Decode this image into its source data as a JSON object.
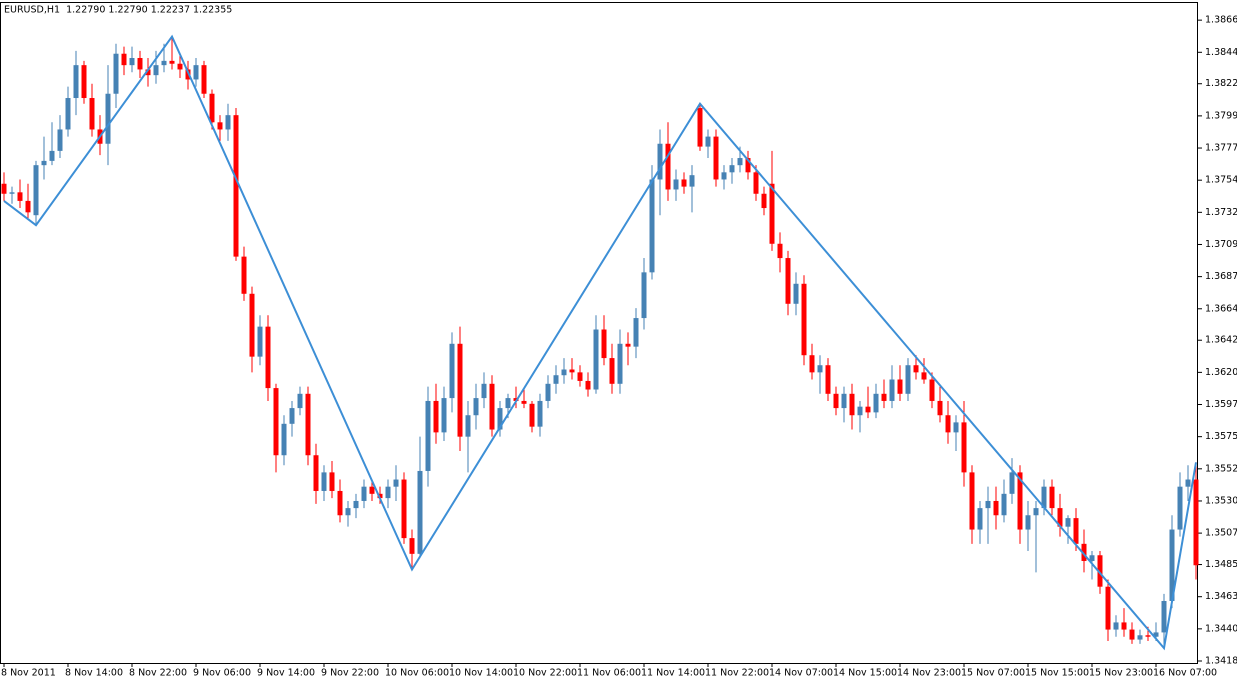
{
  "chart_data": {
    "type": "candlestick",
    "title": "EURUSD,H1  1.22790 1.22790 1.22237 1.22355",
    "up_color": "#4682b4",
    "down_color": "#ff0000",
    "ylim": [
      1.34166,
      1.38785
    ],
    "yticks": [
      1.38665,
      {
        "value": 1.3844,
        "label": "1.38440"
      },
      {
        "value": 1.3822,
        "label": "1.38220"
      },
      1.37995,
      {
        "value": 1.3777,
        "label": "1.37770"
      },
      1.37545,
      {
        "value": 1.3732,
        "label": "1.37320"
      },
      1.37095,
      {
        "value": 1.3687,
        "label": "1.36870"
      },
      1.36645,
      1.36425,
      {
        "value": 1.362,
        "label": "1.36200"
      },
      1.35975,
      {
        "value": 1.3575,
        "label": "1.35750"
      },
      1.35525,
      {
        "value": 1.353,
        "label": "1.35300"
      },
      1.35075,
      1.34855,
      {
        "value": 1.3463,
        "label": "1.34630"
      },
      1.34405,
      {
        "value": 1.3418,
        "label": "1.34180"
      }
    ],
    "categories": [
      "8 Nov 2011",
      null,
      null,
      null,
      null,
      null,
      null,
      null,
      "8 Nov 14:00",
      null,
      null,
      null,
      null,
      null,
      null,
      null,
      "8 Nov 22:00",
      null,
      null,
      null,
      null,
      null,
      null,
      null,
      "9 Nov 06:00",
      null,
      null,
      null,
      null,
      null,
      null,
      null,
      "9 Nov 14:00",
      null,
      null,
      null,
      null,
      null,
      null,
      null,
      "9 Nov 22:00",
      null,
      null,
      null,
      null,
      null,
      null,
      null,
      "10 Nov 06:00",
      null,
      null,
      null,
      null,
      null,
      null,
      null,
      "10 Nov 14:00",
      null,
      null,
      null,
      null,
      null,
      null,
      null,
      "10 Nov 22:00",
      null,
      null,
      null,
      null,
      null,
      null,
      null,
      "11 Nov 06:00",
      null,
      null,
      null,
      null,
      null,
      null,
      null,
      "11 Nov 14:00",
      null,
      null,
      null,
      null,
      null,
      null,
      null,
      "11 Nov 22:00",
      null,
      null,
      null,
      null,
      null,
      null,
      null,
      "14 Nov 07:00",
      null,
      null,
      null,
      null,
      null,
      null,
      null,
      "14 Nov 15:00",
      null,
      null,
      null,
      null,
      null,
      null,
      null,
      "14 Nov 23:00",
      null,
      null,
      null,
      null,
      null,
      null,
      null,
      "15 Nov 07:00",
      null,
      null,
      null,
      null,
      null,
      null,
      null,
      "15 Nov 15:00",
      null,
      null,
      null,
      null,
      null,
      null,
      null,
      "15 Nov 23:00",
      null,
      null,
      null,
      null,
      null,
      null,
      null,
      "16 Nov 07:00",
      null,
      null,
      null,
      null,
      null
    ],
    "candles": [
      [
        1.3752,
        1.376,
        1.374,
        1.3745
      ],
      [
        1.3745,
        1.375,
        1.3738,
        1.3746
      ],
      [
        1.3746,
        1.3755,
        1.3735,
        1.374
      ],
      [
        1.374,
        1.3752,
        1.3728,
        1.3732
      ],
      [
        1.373,
        1.3768,
        1.3723,
        1.3765
      ],
      [
        1.3765,
        1.3785,
        1.3755,
        1.3768
      ],
      [
        1.3768,
        1.3795,
        1.3765,
        1.3775
      ],
      [
        1.3775,
        1.38,
        1.377,
        1.379
      ],
      [
        1.379,
        1.382,
        1.3785,
        1.3812
      ],
      [
        1.3812,
        1.3845,
        1.38,
        1.3835
      ],
      [
        1.3835,
        1.3838,
        1.3808,
        1.3812
      ],
      [
        1.3812,
        1.3822,
        1.3785,
        1.379
      ],
      [
        1.379,
        1.38,
        1.3772,
        1.378
      ],
      [
        1.378,
        1.3835,
        1.3765,
        1.3815
      ],
      [
        1.3815,
        1.385,
        1.3805,
        1.3843
      ],
      [
        1.3843,
        1.3848,
        1.3828,
        1.3835
      ],
      [
        1.3835,
        1.3848,
        1.383,
        1.384
      ],
      [
        1.384,
        1.3845,
        1.3826,
        1.3832
      ],
      [
        1.3832,
        1.384,
        1.382,
        1.3828
      ],
      [
        1.3828,
        1.3845,
        1.3822,
        1.3835
      ],
      [
        1.3835,
        1.385,
        1.383,
        1.3838
      ],
      [
        1.3838,
        1.3855,
        1.3832,
        1.3836
      ],
      [
        1.3836,
        1.3842,
        1.3826,
        1.3832
      ],
      [
        1.3832,
        1.3838,
        1.3818,
        1.3825
      ],
      [
        1.3825,
        1.384,
        1.382,
        1.3835
      ],
      [
        1.3835,
        1.3838,
        1.3812,
        1.3815
      ],
      [
        1.3815,
        1.3818,
        1.379,
        1.3795
      ],
      [
        1.3795,
        1.38,
        1.3782,
        1.379
      ],
      [
        1.379,
        1.3808,
        1.3782,
        1.38
      ],
      [
        1.38,
        1.3805,
        1.3698,
        1.3701
      ],
      [
        1.3701,
        1.3708,
        1.367,
        1.3675
      ],
      [
        1.3675,
        1.368,
        1.362,
        1.3631
      ],
      [
        1.3631,
        1.366,
        1.3625,
        1.3652
      ],
      [
        1.3652,
        1.366,
        1.36,
        1.3609
      ],
      [
        1.3609,
        1.3612,
        1.355,
        1.3562
      ],
      [
        1.3562,
        1.359,
        1.3555,
        1.3584
      ],
      [
        1.3584,
        1.36,
        1.3575,
        1.3595
      ],
      [
        1.3595,
        1.361,
        1.359,
        1.3605
      ],
      [
        1.3605,
        1.361,
        1.3555,
        1.3562
      ],
      [
        1.3562,
        1.357,
        1.3528,
        1.3537
      ],
      [
        1.3537,
        1.3555,
        1.353,
        1.355
      ],
      [
        1.355,
        1.3558,
        1.3532,
        1.3537
      ],
      [
        1.3537,
        1.3545,
        1.3515,
        1.352
      ],
      [
        1.352,
        1.353,
        1.3512,
        1.3525
      ],
      [
        1.3525,
        1.3535,
        1.3518,
        1.353
      ],
      [
        1.353,
        1.3545,
        1.3525,
        1.354
      ],
      [
        1.354,
        1.3545,
        1.353,
        1.3535
      ],
      [
        1.3535,
        1.354,
        1.3528,
        1.3532
      ],
      [
        1.3532,
        1.3545,
        1.3525,
        1.354
      ],
      [
        1.354,
        1.3555,
        1.353,
        1.3545
      ],
      [
        1.3545,
        1.355,
        1.35,
        1.3504
      ],
      [
        1.3504,
        1.351,
        1.3482,
        1.3493
      ],
      [
        1.3493,
        1.3575,
        1.349,
        1.3551
      ],
      [
        1.3551,
        1.361,
        1.354,
        1.36
      ],
      [
        1.36,
        1.3612,
        1.357,
        1.3578
      ],
      [
        1.3578,
        1.361,
        1.3572,
        1.3602
      ],
      [
        1.3602,
        1.3648,
        1.3592,
        1.364
      ],
      [
        1.364,
        1.3652,
        1.3565,
        1.3575
      ],
      [
        1.3575,
        1.36,
        1.355,
        1.359
      ],
      [
        1.359,
        1.3612,
        1.358,
        1.3602
      ],
      [
        1.3602,
        1.362,
        1.3595,
        1.3612
      ],
      [
        1.3612,
        1.3618,
        1.3575,
        1.358
      ],
      [
        1.358,
        1.36,
        1.3575,
        1.3595
      ],
      [
        1.3595,
        1.3605,
        1.3588,
        1.3602
      ],
      [
        1.3602,
        1.361,
        1.3595,
        1.36
      ],
      [
        1.36,
        1.3608,
        1.3595,
        1.3598
      ],
      [
        1.3598,
        1.36,
        1.3578,
        1.3582
      ],
      [
        1.3582,
        1.3605,
        1.3575,
        1.36
      ],
      [
        1.36,
        1.3618,
        1.3595,
        1.3612
      ],
      [
        1.3612,
        1.3625,
        1.3605,
        1.3618
      ],
      [
        1.3618,
        1.363,
        1.3612,
        1.3622
      ],
      [
        1.3622,
        1.363,
        1.3615,
        1.362
      ],
      [
        1.362,
        1.3625,
        1.361,
        1.3614
      ],
      [
        1.3614,
        1.362,
        1.3603,
        1.3608
      ],
      [
        1.3608,
        1.366,
        1.3605,
        1.365
      ],
      [
        1.365,
        1.366,
        1.3625,
        1.363
      ],
      [
        1.363,
        1.364,
        1.3605,
        1.3612
      ],
      [
        1.3612,
        1.365,
        1.3605,
        1.364
      ],
      [
        1.364,
        1.3648,
        1.3625,
        1.3638
      ],
      [
        1.3638,
        1.3665,
        1.363,
        1.3658
      ],
      [
        1.3658,
        1.37,
        1.365,
        1.369
      ],
      [
        1.369,
        1.3765,
        1.3685,
        1.3755
      ],
      [
        1.3755,
        1.379,
        1.373,
        1.378
      ],
      [
        1.378,
        1.3795,
        1.374,
        1.3748
      ],
      [
        1.3748,
        1.3762,
        1.374,
        1.3755
      ],
      [
        1.3755,
        1.376,
        1.3745,
        1.375
      ],
      [
        1.375,
        1.3765,
        1.3732,
        1.3758
      ],
      [
        1.3805,
        1.3808,
        1.3775,
        1.3778
      ],
      [
        1.3778,
        1.379,
        1.377,
        1.3785
      ],
      [
        1.3785,
        1.379,
        1.375,
        1.3755
      ],
      [
        1.3755,
        1.3765,
        1.3748,
        1.376
      ],
      [
        1.376,
        1.377,
        1.3752,
        1.3765
      ],
      [
        1.3765,
        1.3778,
        1.376,
        1.377
      ],
      [
        1.377,
        1.3775,
        1.3755,
        1.376
      ],
      [
        1.376,
        1.3765,
        1.374,
        1.3745
      ],
      [
        1.3745,
        1.375,
        1.373,
        1.3735
      ],
      [
        1.3752,
        1.3775,
        1.3705,
        1.371
      ],
      [
        1.371,
        1.3718,
        1.369,
        1.37
      ],
      [
        1.37,
        1.3705,
        1.366,
        1.3668
      ],
      [
        1.3668,
        1.369,
        1.366,
        1.3682
      ],
      [
        1.3682,
        1.3688,
        1.3625,
        1.3632
      ],
      [
        1.3632,
        1.364,
        1.3615,
        1.362
      ],
      [
        1.362,
        1.3632,
        1.3605,
        1.3625
      ],
      [
        1.3625,
        1.363,
        1.36,
        1.3605
      ],
      [
        1.3605,
        1.361,
        1.359,
        1.3595
      ],
      [
        1.3595,
        1.361,
        1.3585,
        1.3605
      ],
      [
        1.3605,
        1.3612,
        1.358,
        1.359
      ],
      [
        1.359,
        1.36,
        1.3578,
        1.3596
      ],
      [
        1.3596,
        1.361,
        1.3588,
        1.3592
      ],
      [
        1.3592,
        1.3612,
        1.3588,
        1.3605
      ],
      [
        1.3605,
        1.3615,
        1.3595,
        1.36
      ],
      [
        1.36,
        1.3625,
        1.3595,
        1.3615
      ],
      [
        1.3615,
        1.3625,
        1.36,
        1.3605
      ],
      [
        1.3605,
        1.363,
        1.36,
        1.3625
      ],
      [
        1.3625,
        1.3632,
        1.3615,
        1.362
      ],
      [
        1.362,
        1.363,
        1.3612,
        1.3615
      ],
      [
        1.3615,
        1.362,
        1.3595,
        1.36
      ],
      [
        1.36,
        1.361,
        1.3585,
        1.359
      ],
      [
        1.359,
        1.36,
        1.357,
        1.3578
      ],
      [
        1.3578,
        1.359,
        1.3565,
        1.3585
      ],
      [
        1.3585,
        1.36,
        1.354,
        1.355
      ],
      [
        1.355,
        1.3555,
        1.35,
        1.351
      ],
      [
        1.351,
        1.353,
        1.35,
        1.3525
      ],
      [
        1.3525,
        1.354,
        1.35,
        1.353
      ],
      [
        1.353,
        1.354,
        1.351,
        1.352
      ],
      [
        1.352,
        1.3545,
        1.3515,
        1.3535
      ],
      [
        1.3535,
        1.356,
        1.3528,
        1.355
      ],
      [
        1.355,
        1.3555,
        1.35,
        1.351
      ],
      [
        1.351,
        1.353,
        1.3495,
        1.352
      ],
      [
        1.352,
        1.353,
        1.348,
        1.3525
      ],
      [
        1.3525,
        1.3545,
        1.352,
        1.354
      ],
      [
        1.354,
        1.3545,
        1.352,
        1.3525
      ],
      [
        1.3525,
        1.3535,
        1.3505,
        1.3512
      ],
      [
        1.3512,
        1.352,
        1.35,
        1.3518
      ],
      [
        1.3518,
        1.3525,
        1.3495,
        1.35
      ],
      [
        1.35,
        1.351,
        1.348,
        1.3488
      ],
      [
        1.3488,
        1.3495,
        1.3475,
        1.3492
      ],
      [
        1.3492,
        1.3495,
        1.3465,
        1.347
      ],
      [
        1.347,
        1.3475,
        1.3432,
        1.344
      ],
      [
        1.344,
        1.345,
        1.3435,
        1.3445
      ],
      [
        1.3445,
        1.3455,
        1.3435,
        1.344
      ],
      [
        1.344,
        1.3445,
        1.343,
        1.3433
      ],
      [
        1.3433,
        1.344,
        1.343,
        1.3436
      ],
      [
        1.3436,
        1.3442,
        1.3432,
        1.3435
      ],
      [
        1.3435,
        1.3445,
        1.3432,
        1.3438
      ],
      [
        1.3438,
        1.3465,
        1.3427,
        1.346
      ],
      [
        1.346,
        1.352,
        1.3455,
        1.351
      ],
      [
        1.351,
        1.355,
        1.3505,
        1.354
      ],
      [
        1.354,
        1.3555,
        1.353,
        1.3545
      ],
      [
        1.3545,
        1.3557,
        1.3475,
        1.3485
      ]
    ],
    "zigzag": {
      "color": "#3d8fd6",
      "x": [
        0,
        4,
        21,
        51,
        87,
        145,
        149
      ],
      "values": [
        1.374,
        1.3723,
        1.3855,
        1.3482,
        1.3808,
        1.3427,
        1.3557
      ]
    }
  }
}
